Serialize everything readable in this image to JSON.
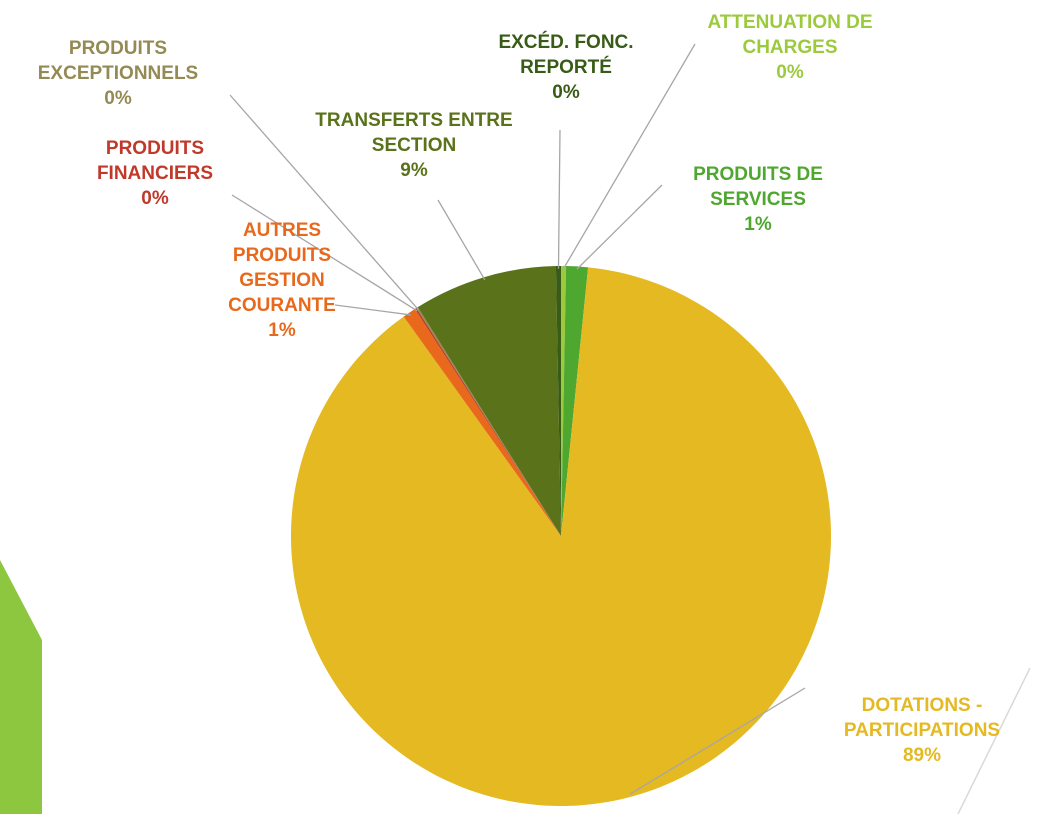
{
  "chart_data": {
    "type": "pie",
    "categories": [
      "ATTENUATION DE CHARGES",
      "PRODUITS DE SERVICES",
      "DOTATIONS - PARTICIPATIONS",
      "AUTRES PRODUITS GESTION COURANTE",
      "PRODUITS FINANCIERS",
      "PRODUITS EXCEPTIONNELS",
      "TRANSFERTS ENTRE SECTION",
      "EXCÉD. FONC. REPORTÉ"
    ],
    "values": [
      0.3,
      1.3,
      88.5,
      0.8,
      0.1,
      0.1,
      8.6,
      0.3
    ],
    "value_labels": [
      "0%",
      "1%",
      "89%",
      "1%",
      "0%",
      "0%",
      "9%",
      "0%"
    ],
    "colors": [
      "#9bcb3c",
      "#4ea72e",
      "#e4b921",
      "#e8691b",
      "#c0392b",
      "#948a54",
      "#5a7219",
      "#385b16"
    ]
  }
}
